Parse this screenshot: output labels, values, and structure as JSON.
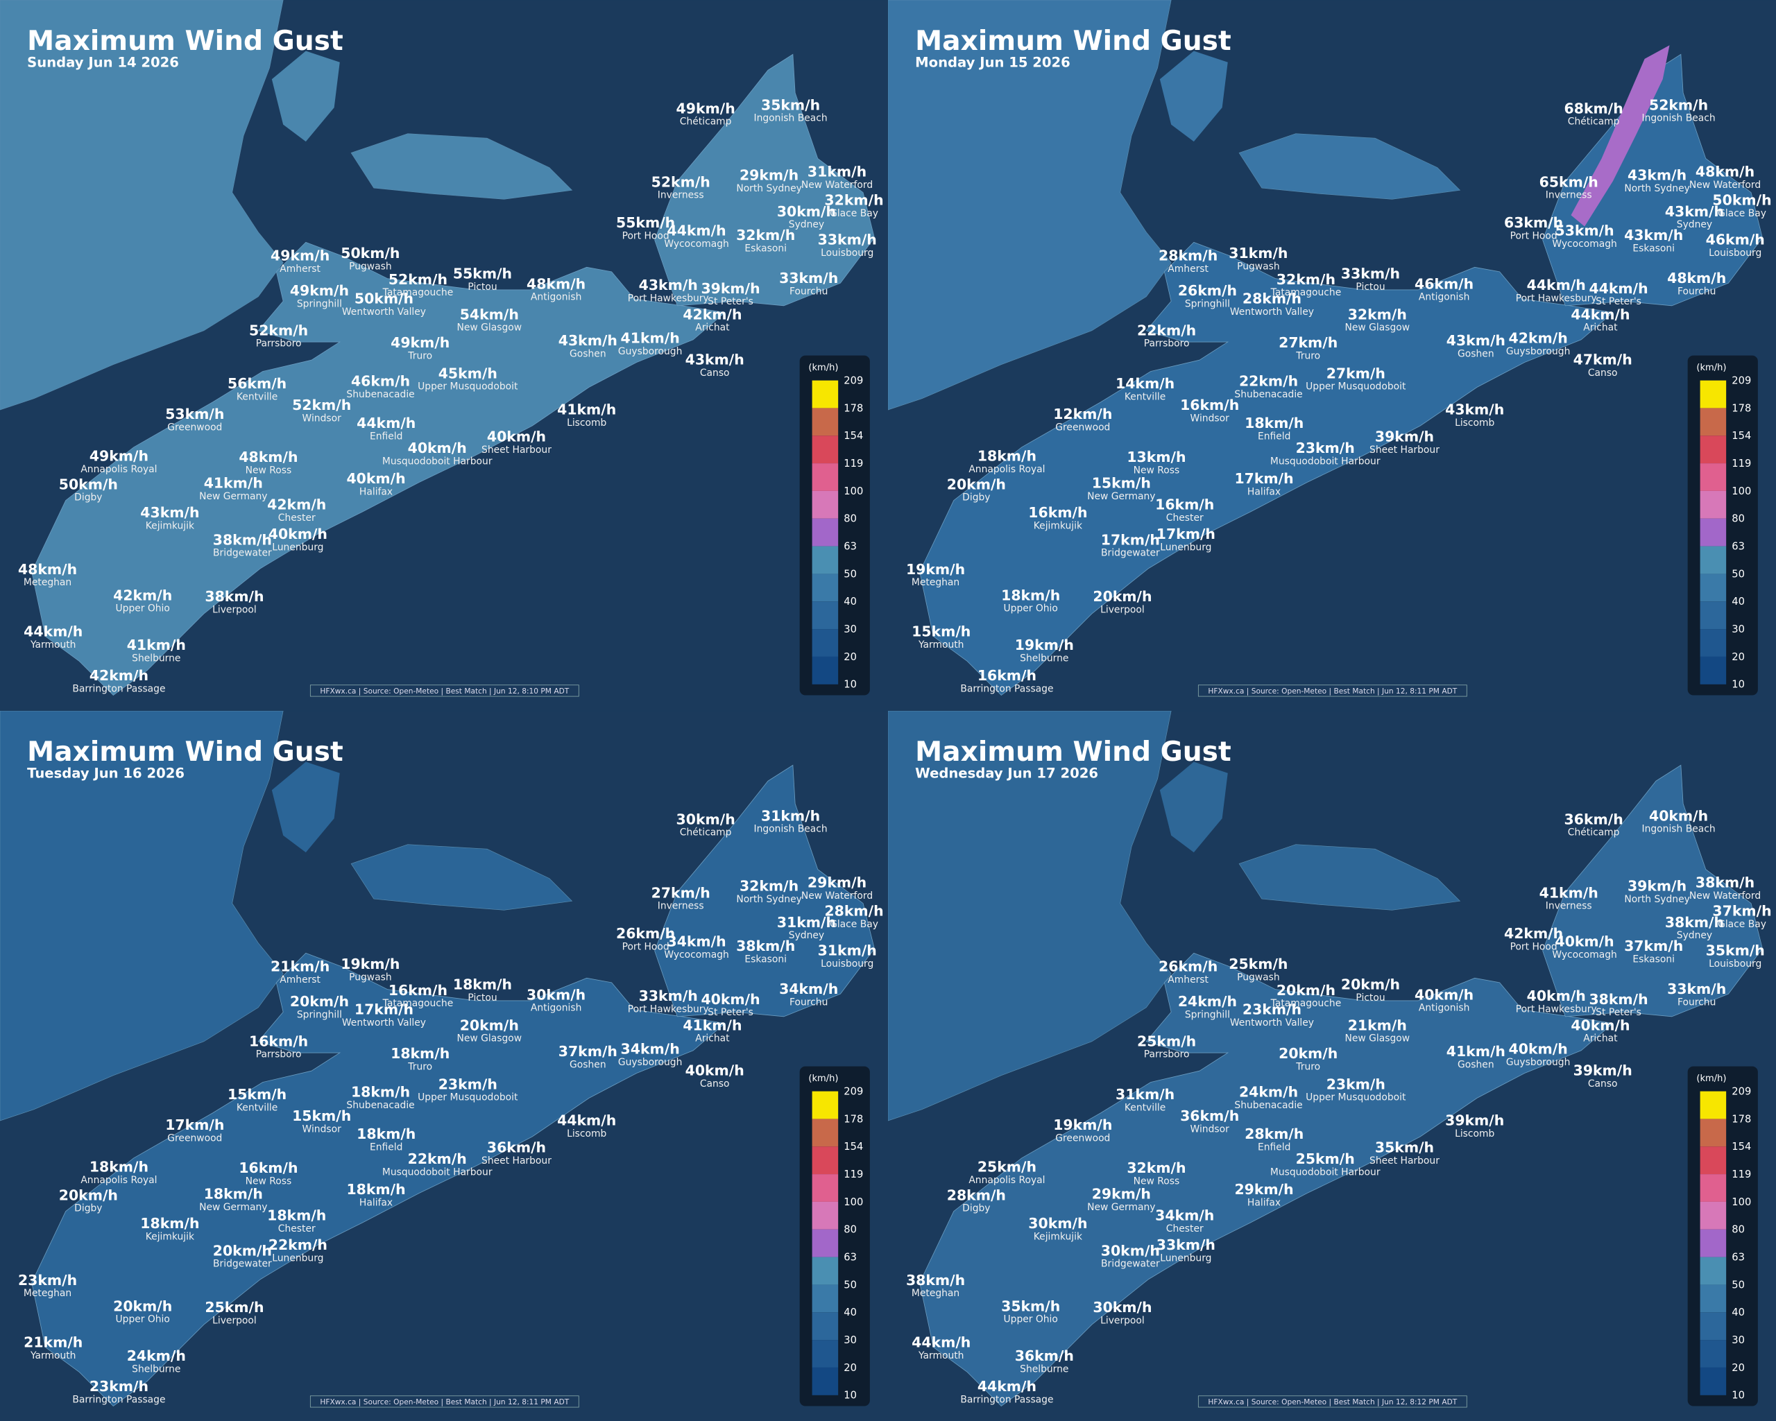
{
  "stations": [
    "Chéticamp",
    "Ingonish Beach",
    "Inverness",
    "North Sydney",
    "New Waterford",
    "Glace Bay",
    "Sydney",
    "Port Hood",
    "Wycocomagh",
    "Eskasoni",
    "Louisbourg",
    "Amherst",
    "Pugwash",
    "Tatamagouche",
    "Pictou",
    "Antigonish",
    "Port Hawkesbury",
    "St Peter's",
    "Fourchu",
    "Springhill",
    "Wentworth Valley",
    "New Glasgow",
    "Arichat",
    "Parrsboro",
    "Truro",
    "Goshen",
    "Guysborough",
    "Canso",
    "Kentville",
    "Shubenacadie",
    "Upper Musquodoboit",
    "Windsor",
    "Liscomb",
    "Greenwood",
    "Enfield",
    "Sheet Harbour",
    "Musquodoboit Harbour",
    "Annapolis Royal",
    "New Ross",
    "Digby",
    "New Germany",
    "Halifax",
    "Chester",
    "Kejimkujik",
    "Bridgewater",
    "Lunenburg",
    "Meteghan",
    "Upper Ohio",
    "Liverpool",
    "Yarmouth",
    "Shelburne",
    "Barrington Passage"
  ],
  "panels": [
    {
      "title": "Maximum Wind Gust",
      "date": "Sunday Jun 14 2026",
      "footer": "HFXwx.ca | Source: Open-Meteo | Best Match | Jun 12, 8:10 PM ADT",
      "gusts": [
        "49km/h",
        "35km/h",
        "52km/h",
        "29km/h",
        "31km/h",
        "32km/h",
        "30km/h",
        "55km/h",
        "44km/h",
        "32km/h",
        "33km/h",
        "49km/h",
        "50km/h",
        "52km/h",
        "55km/h",
        "48km/h",
        "43km/h",
        "39km/h",
        "33km/h",
        "49km/h",
        "50km/h",
        "54km/h",
        "42km/h",
        "52km/h",
        "49km/h",
        "43km/h",
        "41km/h",
        "43km/h",
        "56km/h",
        "46km/h",
        "45km/h",
        "52km/h",
        "41km/h",
        "53km/h",
        "44km/h",
        "40km/h",
        "40km/h",
        "49km/h",
        "48km/h",
        "50km/h",
        "41km/h",
        "40km/h",
        "42km/h",
        "43km/h",
        "38km/h",
        "40km/h",
        "48km/h",
        "42km/h",
        "38km/h",
        "44km/h",
        "41km/h",
        "42km/h"
      ]
    },
    {
      "title": "Maximum Wind Gust",
      "date": "Monday Jun 15 2026",
      "footer": "HFXwx.ca | Source: Open-Meteo | Best Match | Jun 12, 8:11 PM ADT",
      "gusts": [
        "68km/h",
        "52km/h",
        "65km/h",
        "43km/h",
        "48km/h",
        "50km/h",
        "43km/h",
        "63km/h",
        "53km/h",
        "43km/h",
        "46km/h",
        "28km/h",
        "31km/h",
        "32km/h",
        "33km/h",
        "46km/h",
        "44km/h",
        "44km/h",
        "48km/h",
        "26km/h",
        "28km/h",
        "32km/h",
        "44km/h",
        "22km/h",
        "27km/h",
        "43km/h",
        "42km/h",
        "47km/h",
        "14km/h",
        "22km/h",
        "27km/h",
        "16km/h",
        "43km/h",
        "12km/h",
        "18km/h",
        "39km/h",
        "23km/h",
        "18km/h",
        "13km/h",
        "20km/h",
        "15km/h",
        "17km/h",
        "16km/h",
        "16km/h",
        "17km/h",
        "17km/h",
        "19km/h",
        "18km/h",
        "20km/h",
        "15km/h",
        "19km/h",
        "16km/h"
      ]
    },
    {
      "title": "Maximum Wind Gust",
      "date": "Tuesday Jun 16 2026",
      "footer": "HFXwx.ca | Source: Open-Meteo | Best Match | Jun 12, 8:11 PM ADT",
      "gusts": [
        "30km/h",
        "31km/h",
        "27km/h",
        "32km/h",
        "29km/h",
        "28km/h",
        "31km/h",
        "26km/h",
        "34km/h",
        "38km/h",
        "31km/h",
        "21km/h",
        "19km/h",
        "16km/h",
        "18km/h",
        "30km/h",
        "33km/h",
        "40km/h",
        "34km/h",
        "20km/h",
        "17km/h",
        "20km/h",
        "41km/h",
        "16km/h",
        "18km/h",
        "37km/h",
        "34km/h",
        "40km/h",
        "15km/h",
        "18km/h",
        "23km/h",
        "15km/h",
        "44km/h",
        "17km/h",
        "18km/h",
        "36km/h",
        "22km/h",
        "18km/h",
        "16km/h",
        "20km/h",
        "18km/h",
        "18km/h",
        "18km/h",
        "18km/h",
        "20km/h",
        "22km/h",
        "23km/h",
        "20km/h",
        "25km/h",
        "21km/h",
        "24km/h",
        "23km/h"
      ]
    },
    {
      "title": "Maximum Wind Gust",
      "date": "Wednesday Jun 17 2026",
      "footer": "HFXwx.ca | Source: Open-Meteo | Best Match | Jun 12, 8:12 PM ADT",
      "gusts": [
        "36km/h",
        "40km/h",
        "41km/h",
        "39km/h",
        "38km/h",
        "37km/h",
        "38km/h",
        "42km/h",
        "40km/h",
        "37km/h",
        "35km/h",
        "26km/h",
        "25km/h",
        "20km/h",
        "20km/h",
        "40km/h",
        "40km/h",
        "38km/h",
        "33km/h",
        "24km/h",
        "23km/h",
        "21km/h",
        "40km/h",
        "25km/h",
        "20km/h",
        "41km/h",
        "40km/h",
        "39km/h",
        "31km/h",
        "24km/h",
        "23km/h",
        "36km/h",
        "39km/h",
        "19km/h",
        "28km/h",
        "35km/h",
        "25km/h",
        "25km/h",
        "32km/h",
        "28km/h",
        "29km/h",
        "29km/h",
        "34km/h",
        "30km/h",
        "30km/h",
        "33km/h",
        "38km/h",
        "35km/h",
        "30km/h",
        "44km/h",
        "36km/h",
        "44km/h"
      ]
    }
  ],
  "legend": {
    "unit": "(km/h)",
    "labels": [
      209,
      178,
      154,
      119,
      100,
      80,
      63,
      50,
      40,
      30,
      20,
      10
    ],
    "colors": [
      "#f7e600",
      "#c8694a",
      "#d9485a",
      "#e0608f",
      "#d778b8",
      "#a267c9",
      "#4a8fb2",
      "#3a7aa8",
      "#2c679b",
      "#1f578f",
      "#134883"
    ]
  }
}
